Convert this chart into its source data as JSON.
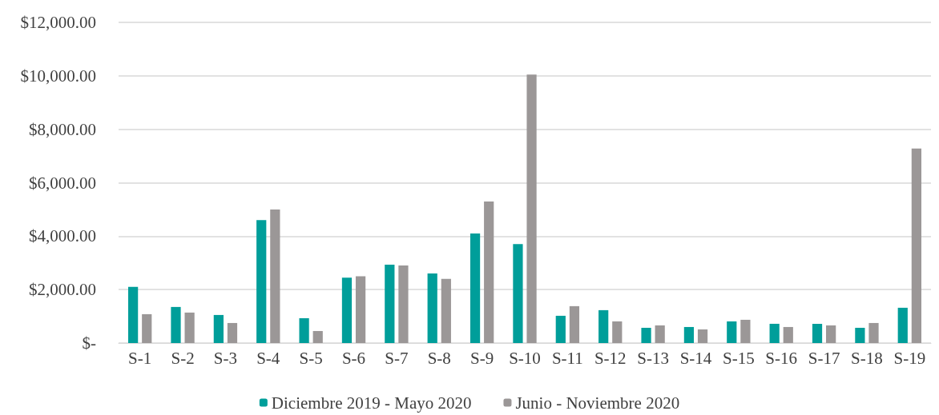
{
  "chart_data": {
    "type": "bar",
    "categories": [
      "S-1",
      "S-2",
      "S-3",
      "S-4",
      "S-5",
      "S-6",
      "S-7",
      "S-8",
      "S-9",
      "S-10",
      "S-11",
      "S-12",
      "S-13",
      "S-14",
      "S-15",
      "S-16",
      "S-17",
      "S-18",
      "S-19"
    ],
    "series": [
      {
        "name": "Diciembre 2019 - Mayo 2020",
        "color": "#009e9a",
        "values": [
          2100,
          1350,
          1050,
          4600,
          930,
          2450,
          2930,
          2600,
          4100,
          3700,
          1020,
          1230,
          570,
          600,
          810,
          720,
          720,
          570,
          1320
        ]
      },
      {
        "name": "Junio - Noviembre 2020",
        "color": "#9b9797",
        "values": [
          1080,
          1140,
          750,
          5000,
          450,
          2500,
          2900,
          2400,
          5300,
          10050,
          1380,
          810,
          660,
          510,
          870,
          600,
          660,
          750,
          7280
        ]
      }
    ],
    "ylim": [
      0,
      12000
    ],
    "yticks": [
      {
        "value": 0,
        "label": "$-"
      },
      {
        "value": 2000,
        "label": "$2,000.00"
      },
      {
        "value": 4000,
        "label": "$4,000.00"
      },
      {
        "value": 6000,
        "label": "$6,000.00"
      },
      {
        "value": 8000,
        "label": "$8,000.00"
      },
      {
        "value": 10000,
        "label": "$10,000.00"
      },
      {
        "value": 12000,
        "label": "$12,000.00"
      }
    ],
    "grid": "y",
    "legend": "bottom"
  }
}
